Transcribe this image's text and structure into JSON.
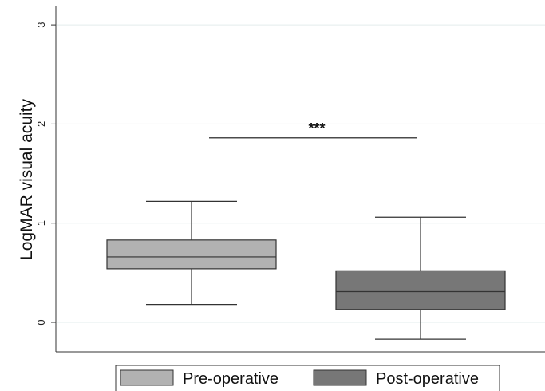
{
  "chart_data": {
    "type": "box",
    "ylabel": "LogMAR visual acuity",
    "xlabel": "",
    "ylim": [
      -0.3,
      3.1
    ],
    "yticks": [
      0,
      1,
      2,
      3
    ],
    "ytick_labels": [
      "0",
      "1",
      "2",
      "3"
    ],
    "grid": true,
    "legend_position": "bottom",
    "series": [
      {
        "name": "Pre-operative",
        "color": "#b2b2b2",
        "whisker_low": 0.18,
        "q1": 0.54,
        "median": 0.66,
        "q3": 0.83,
        "whisker_high": 1.22
      },
      {
        "name": "Post-operative",
        "color": "#777777",
        "whisker_low": -0.17,
        "q1": 0.13,
        "median": 0.31,
        "q3": 0.52,
        "whisker_high": 1.06
      }
    ],
    "annotation": {
      "text": "***",
      "y": 1.86
    }
  }
}
